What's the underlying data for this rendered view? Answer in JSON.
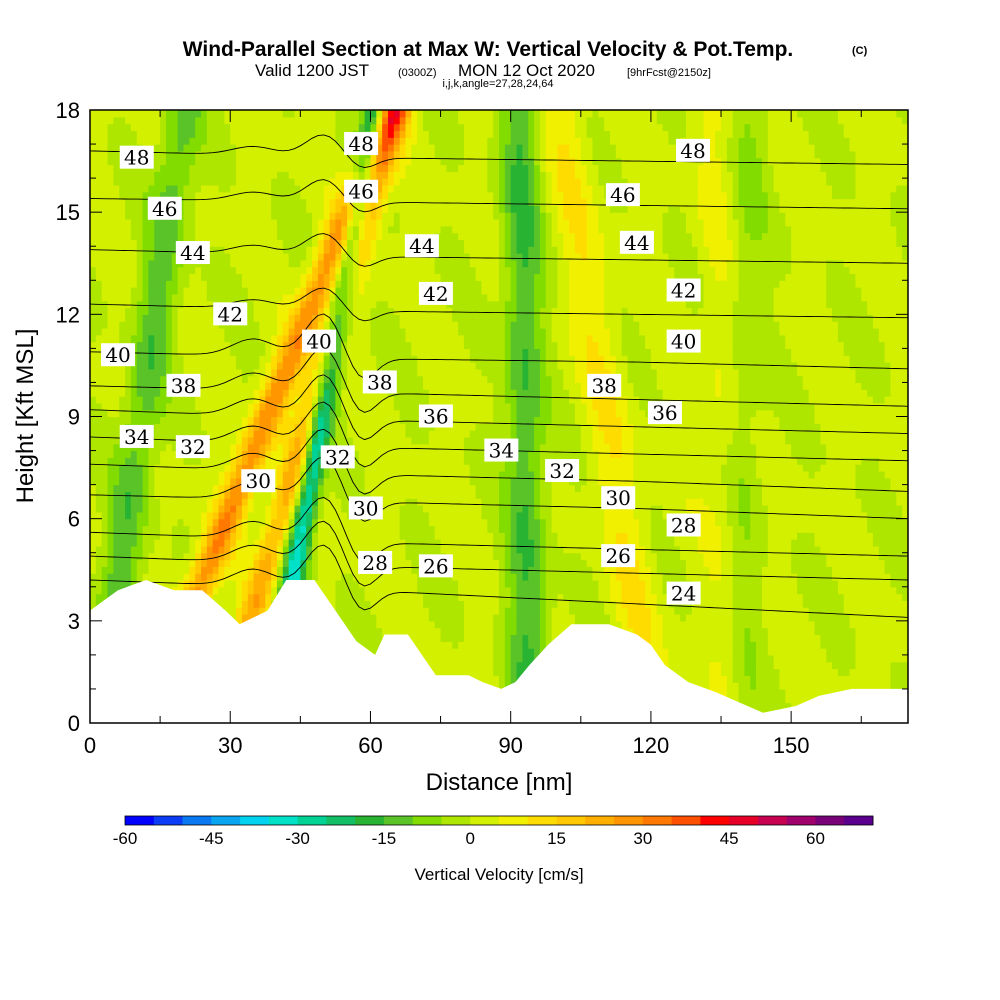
{
  "titles": {
    "main": "Wind-Parallel Section at Max W: Vertical Velocity & Pot.Temp.",
    "main_mark": "(C)",
    "valid_prefix": "Valid 1200 JST",
    "valid_z": "(0300Z)",
    "valid_date": "MON 12 Oct 2020",
    "fcst": "[9hrFcst@2150z]",
    "indices": "i,j,k,angle=27,28,24,64"
  },
  "chart_data": {
    "type": "heatmap",
    "title": "Wind-Parallel Section at Max W: Vertical Velocity & Pot.Temp.",
    "xlabel": "Distance [nm]",
    "ylabel": "Height [Kft MSL]",
    "xlim": [
      0,
      175
    ],
    "ylim": [
      0,
      18
    ],
    "x_ticks": [
      0,
      30,
      60,
      90,
      120,
      150
    ],
    "y_ticks": [
      0,
      3,
      6,
      9,
      12,
      15,
      18
    ],
    "x_tick_labels": [
      "0",
      "30",
      "60",
      "90",
      "120",
      "150"
    ],
    "y_tick_labels": [
      "0",
      "3",
      "6",
      "9",
      "12",
      "15",
      "18"
    ],
    "colorbar": {
      "label": "Vertical Velocity [cm/s]",
      "min": -60,
      "max": 70,
      "step": 5,
      "tick_values": [
        -60,
        -45,
        -30,
        -15,
        0,
        15,
        30,
        45,
        60
      ],
      "tick_labels": [
        "-60",
        "-45",
        "-30",
        "-15",
        "0",
        "15",
        "30",
        "45",
        "60"
      ],
      "colors": [
        "#0000ff",
        "#0a3df5",
        "#0a78f0",
        "#0aa5f0",
        "#00d2f0",
        "#00e1c8",
        "#00d296",
        "#14be64",
        "#28b432",
        "#5ac328",
        "#82dc00",
        "#afe600",
        "#d2f000",
        "#f0f000",
        "#ffdc00",
        "#ffc800",
        "#ffaf00",
        "#ff9600",
        "#ff7800",
        "#ff5000",
        "#ff0000",
        "#e60028",
        "#c80050",
        "#a0006e",
        "#780078",
        "#5a008c"
      ]
    },
    "terrain": [
      [
        0,
        3.3
      ],
      [
        3,
        3.6
      ],
      [
        6,
        3.9
      ],
      [
        12,
        4.2
      ],
      [
        18,
        3.9
      ],
      [
        24,
        3.9
      ],
      [
        29,
        3.3
      ],
      [
        32,
        2.9
      ],
      [
        38,
        3.3
      ],
      [
        42,
        4.2
      ],
      [
        48,
        4.2
      ],
      [
        51,
        3.6
      ],
      [
        54,
        3.0
      ],
      [
        57,
        2.4
      ],
      [
        61,
        2.0
      ],
      [
        63,
        2.6
      ],
      [
        68,
        2.6
      ],
      [
        71,
        2.0
      ],
      [
        74,
        1.4
      ],
      [
        81,
        1.4
      ],
      [
        84,
        1.2
      ],
      [
        88,
        1.0
      ],
      [
        91,
        1.2
      ],
      [
        94,
        1.7
      ],
      [
        98,
        2.3
      ],
      [
        103,
        2.9
      ],
      [
        111,
        2.9
      ],
      [
        117,
        2.6
      ],
      [
        120,
        2.3
      ],
      [
        123,
        1.7
      ],
      [
        128,
        1.2
      ],
      [
        134,
        0.9
      ],
      [
        139,
        0.6
      ],
      [
        144,
        0.3
      ],
      [
        151,
        0.5
      ],
      [
        156,
        0.8
      ],
      [
        163,
        1.0
      ],
      [
        175,
        1.0
      ]
    ],
    "velocity_bands": [
      {
        "x0": 12,
        "x1": 64,
        "w": 28,
        "sigma": 2.5
      },
      {
        "x0": 28,
        "x1": 66,
        "w": 22,
        "sigma": 2.2
      },
      {
        "x0": 38,
        "x1": 61,
        "w": -34,
        "sigma": 1.8
      },
      {
        "x0": 2,
        "x1": 20,
        "w": -14,
        "sigma": 3.0
      },
      {
        "x0": 94,
        "x1": 92,
        "w": -16,
        "sigma": 3.0
      },
      {
        "x0": 121,
        "x1": 101,
        "w": 8,
        "sigma": 3.5
      },
      {
        "x0": 137,
        "x1": 133,
        "w": 5,
        "sigma": 3.0
      },
      {
        "x0": 139,
        "x1": 141,
        "w": -6,
        "sigma": 3.0
      }
    ],
    "isentropes": [
      {
        "value": 24,
        "z": [
          4.2,
          3.9,
          3.5,
          3.1
        ]
      },
      {
        "value": 26,
        "z": [
          4.9,
          4.6,
          4.4,
          4.2
        ]
      },
      {
        "value": 28,
        "z": [
          5.6,
          5.3,
          5.1,
          4.9
        ]
      },
      {
        "value": 30,
        "z": [
          6.7,
          6.5,
          6.3,
          6.0
        ]
      },
      {
        "value": 32,
        "z": [
          7.6,
          7.3,
          7.1,
          6.8
        ]
      },
      {
        "value": 34,
        "z": [
          8.4,
          8.1,
          7.9,
          7.7
        ]
      },
      {
        "value": 36,
        "z": [
          9.2,
          8.9,
          8.7,
          8.5
        ]
      },
      {
        "value": 38,
        "z": [
          9.9,
          9.7,
          9.5,
          9.3
        ]
      },
      {
        "value": 40,
        "z": [
          10.9,
          10.7,
          10.6,
          10.4
        ]
      },
      {
        "value": 42,
        "z": [
          12.3,
          12.1,
          12.0,
          11.9
        ]
      },
      {
        "value": 44,
        "z": [
          13.9,
          13.7,
          13.6,
          13.5
        ]
      },
      {
        "value": 46,
        "z": [
          15.4,
          15.3,
          15.2,
          15.1
        ]
      },
      {
        "value": 48,
        "z": [
          16.8,
          16.6,
          16.5,
          16.4
        ]
      }
    ],
    "isentrope_labels": [
      {
        "text": "48",
        "x": 10,
        "y": 16.6
      },
      {
        "text": "46",
        "x": 16,
        "y": 15.1
      },
      {
        "text": "44",
        "x": 22,
        "y": 13.8
      },
      {
        "text": "42",
        "x": 30,
        "y": 12.0
      },
      {
        "text": "40",
        "x": 6,
        "y": 10.8
      },
      {
        "text": "38",
        "x": 20,
        "y": 9.9
      },
      {
        "text": "34",
        "x": 10,
        "y": 8.4
      },
      {
        "text": "32",
        "x": 22,
        "y": 8.1
      },
      {
        "text": "30",
        "x": 36,
        "y": 7.1
      },
      {
        "text": "48",
        "x": 58,
        "y": 17.0
      },
      {
        "text": "46",
        "x": 58,
        "y": 15.6
      },
      {
        "text": "40",
        "x": 49,
        "y": 11.2
      },
      {
        "text": "38",
        "x": 62,
        "y": 10.0
      },
      {
        "text": "32",
        "x": 53,
        "y": 7.8
      },
      {
        "text": "30",
        "x": 59,
        "y": 6.3
      },
      {
        "text": "28",
        "x": 61,
        "y": 4.7
      },
      {
        "text": "26",
        "x": 74,
        "y": 4.6
      },
      {
        "text": "44",
        "x": 71,
        "y": 14.0
      },
      {
        "text": "42",
        "x": 74,
        "y": 12.6
      },
      {
        "text": "36",
        "x": 74,
        "y": 9.0
      },
      {
        "text": "34",
        "x": 88,
        "y": 8.0
      },
      {
        "text": "32",
        "x": 101,
        "y": 7.4
      },
      {
        "text": "38",
        "x": 110,
        "y": 9.9
      },
      {
        "text": "46",
        "x": 114,
        "y": 15.5
      },
      {
        "text": "44",
        "x": 117,
        "y": 14.1
      },
      {
        "text": "30",
        "x": 113,
        "y": 6.6
      },
      {
        "text": "26",
        "x": 113,
        "y": 4.9
      },
      {
        "text": "48",
        "x": 129,
        "y": 16.8
      },
      {
        "text": "42",
        "x": 127,
        "y": 12.7
      },
      {
        "text": "40",
        "x": 127,
        "y": 11.2
      },
      {
        "text": "36",
        "x": 123,
        "y": 9.1
      },
      {
        "text": "28",
        "x": 127,
        "y": 5.8
      },
      {
        "text": "24",
        "x": 127,
        "y": 3.8
      }
    ]
  }
}
